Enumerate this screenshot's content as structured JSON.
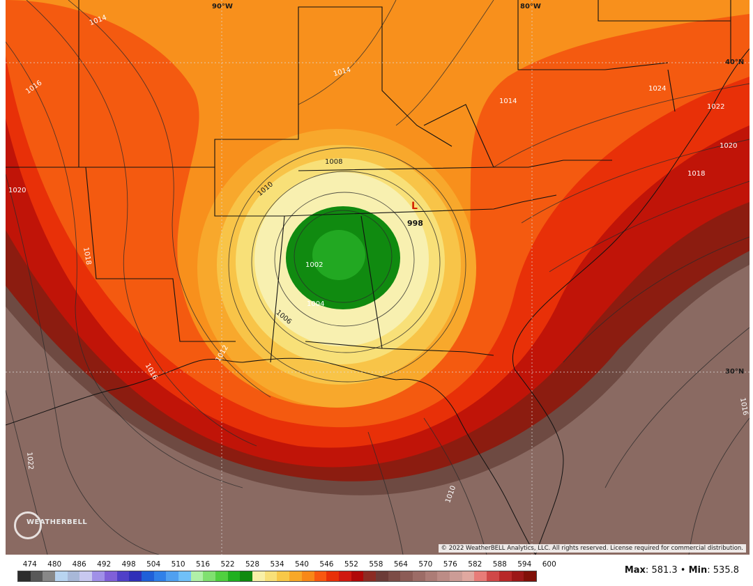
{
  "map": {
    "title": "",
    "grid_labels": {
      "lon_left": "90°W",
      "lon_right": "80°W",
      "lat_top": "40°N",
      "lat_bottom": "30°N"
    },
    "low_center": {
      "symbol": "L",
      "pressure": "998"
    },
    "isobar_labels": [
      {
        "text": "1014",
        "color": "white"
      },
      {
        "text": "1014",
        "color": "white"
      },
      {
        "text": "1014",
        "color": "white"
      },
      {
        "text": "1016",
        "color": "white"
      },
      {
        "text": "1016",
        "color": "white"
      },
      {
        "text": "1016",
        "color": "white"
      },
      {
        "text": "1018",
        "color": "white"
      },
      {
        "text": "1018",
        "color": "white"
      },
      {
        "text": "1020",
        "color": "white"
      },
      {
        "text": "1020",
        "color": "white"
      },
      {
        "text": "1022",
        "color": "white"
      },
      {
        "text": "1022",
        "color": "white"
      },
      {
        "text": "1024",
        "color": "white"
      },
      {
        "text": "1008",
        "color": "black"
      },
      {
        "text": "1010",
        "color": "black"
      },
      {
        "text": "1006",
        "color": "black"
      },
      {
        "text": "1004",
        "color": "white"
      },
      {
        "text": "1002",
        "color": "white"
      },
      {
        "text": "1010",
        "color": "white"
      },
      {
        "text": "1012",
        "color": "white"
      }
    ],
    "copyright": "© 2022 WeatherBELL Analytics, LLC. All rights reserved. License required for commercial distribution.",
    "logo_text": "WEATHERBELL"
  },
  "colorbar": {
    "labels": [
      "474",
      "480",
      "486",
      "492",
      "498",
      "504",
      "510",
      "516",
      "522",
      "528",
      "534",
      "540",
      "546",
      "552",
      "558",
      "564",
      "570",
      "576",
      "582",
      "588",
      "594",
      "600"
    ],
    "colors": [
      "#2c2c2c",
      "#585858",
      "#888888",
      "#b8d4f0",
      "#a8b8d8",
      "#c8c8f0",
      "#a090e8",
      "#8060d8",
      "#5040c8",
      "#3030b8",
      "#2060d8",
      "#3080e8",
      "#50a0f0",
      "#70c0f8",
      "#b0f0a8",
      "#80e070",
      "#50d040",
      "#20b020",
      "#108a10",
      "#f8f0a8",
      "#f8e078",
      "#f8c848",
      "#f8a828",
      "#f88818",
      "#f85810",
      "#e83008",
      "#d01810",
      "#b00808",
      "#8c2c24",
      "#6c3c38",
      "#7c4c46",
      "#8c5c56",
      "#9c6c66",
      "#ac7c76",
      "#bc8c86",
      "#cc9c96",
      "#e0a8a0",
      "#e87c78",
      "#d04848",
      "#b82828",
      "#9c1818",
      "#801008"
    ]
  },
  "stats": {
    "max_label": "Max",
    "max_value": "581.3",
    "min_label": "Min",
    "min_value": "535.8",
    "separator": "•"
  }
}
